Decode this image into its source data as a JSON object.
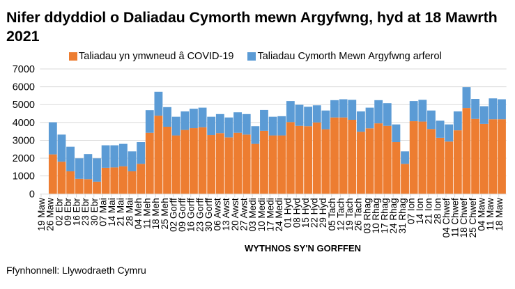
{
  "title": "Nifer ddyddiol o Daliadau Cymorth mewn Argyfwng, hyd at 18 Mawrth 2021",
  "legend": [
    {
      "label": "Taliadau yn ymwneud â COVID-19",
      "color": "#ED7D31"
    },
    {
      "label": "Taliadau Cymorth Mewn Argyfwng arferol",
      "color": "#5B9BD5"
    }
  ],
  "x_axis_title": "WYTHNOS SY'N GORFFEN",
  "source": "Ffynhonnell: Llywodraeth Cymru",
  "chart_data": {
    "type": "bar",
    "stacked": true,
    "title": "Nifer ddyddiol o Daliadau Cymorth mewn Argyfwng, hyd at 18 Mawrth 2021",
    "xlabel": "WYTHNOS SY'N GORFFEN",
    "ylabel": "",
    "ylim": [
      0,
      7000
    ],
    "yticks": [
      0,
      1000,
      2000,
      3000,
      4000,
      5000,
      6000,
      7000
    ],
    "grid": true,
    "legend_position": "top",
    "categories": [
      "19 Maw",
      "26 Maw",
      "02 Ebr",
      "09 Ebr",
      "16 Ebr",
      "23 Ebr",
      "30 Ebr",
      "07 Mai",
      "14 Mai",
      "21 Mai",
      "28 Mai",
      "04 Meh",
      "11 Meh",
      "18 Meh",
      "25 Meh",
      "02 Gorff",
      "09 Gorff",
      "16 Gorff",
      "23 Gorff",
      "30 Gorff",
      "06 Awst",
      "13 Awst",
      "20 Awst",
      "27 Awst",
      "03 Medi",
      "10 Medi",
      "17 Medi",
      "24 Medi",
      "01 Hyd",
      "08 Hyd",
      "15 Hyd",
      "22 Hyd",
      "29 Hyd",
      "05 Tach",
      "12 Tach",
      "19 Tach",
      "26 Tach",
      "03 Rhag",
      "10 Rhag",
      "17 Rhag",
      "24 Rhag",
      "31 Rhag",
      "07 Ion",
      "14 Ion",
      "21 Ion",
      "28 Ion",
      "04 Chwef",
      "11 Chwef",
      "18 Chwef",
      "25 Chwef",
      "04 Maw",
      "11 Maw",
      "18 Maw"
    ],
    "series": [
      {
        "name": "Taliadau yn ymwneud â COVID-19",
        "color": "#ED7D31",
        "values": [
          null,
          2210,
          1800,
          1260,
          840,
          820,
          680,
          1460,
          1480,
          1540,
          1260,
          1680,
          3420,
          4380,
          3760,
          3270,
          3580,
          3680,
          3730,
          3290,
          3400,
          3160,
          3420,
          3320,
          2800,
          3530,
          3270,
          3270,
          4020,
          3810,
          3790,
          4000,
          3620,
          4280,
          4280,
          4150,
          3480,
          3670,
          3950,
          3810,
          2900,
          1680,
          4070,
          4050,
          3630,
          3140,
          2930,
          3560,
          4810,
          4200,
          3920,
          4180,
          4180
        ]
      },
      {
        "name": "Taliadau Cymorth Mewn Argyfwng arferol",
        "color": "#5B9BD5",
        "values": [
          null,
          1800,
          1520,
          1380,
          1150,
          1410,
          1310,
          1260,
          1240,
          1260,
          1120,
          1220,
          1270,
          1340,
          1100,
          1050,
          1040,
          1090,
          1100,
          1030,
          1070,
          1120,
          1150,
          1150,
          990,
          1170,
          1050,
          1080,
          1180,
          1180,
          1090,
          960,
          1050,
          970,
          1020,
          1120,
          1140,
          1160,
          1300,
          1270,
          990,
          700,
          1130,
          1220,
          1040,
          960,
          960,
          1060,
          1170,
          1120,
          990,
          1170,
          1120
        ]
      }
    ]
  }
}
